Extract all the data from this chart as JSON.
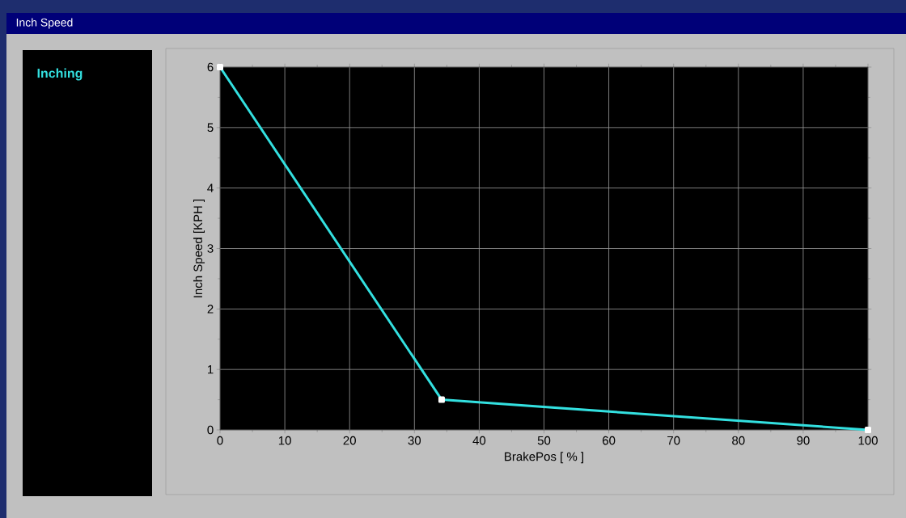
{
  "chart_data": {
    "type": "line",
    "title": "Inch Speed",
    "xlabel": "BrakePos [ %  ]",
    "ylabel": "Inch Speed   [KPH ]",
    "x": [
      0,
      34.2,
      100
    ],
    "series": [
      {
        "name": "Inching",
        "color": "#33e0e0",
        "values": [
          6,
          0.5,
          0
        ]
      }
    ],
    "xlim": [
      0,
      100
    ],
    "ylim": [
      0,
      6
    ],
    "xticks": [
      0,
      10,
      20,
      30,
      40,
      50,
      60,
      70,
      80,
      90,
      100
    ],
    "yticks": [
      0,
      1,
      2,
      3,
      4,
      5,
      6
    ],
    "grid": true,
    "legend": "left",
    "marker": "square",
    "line_style": "solid"
  }
}
